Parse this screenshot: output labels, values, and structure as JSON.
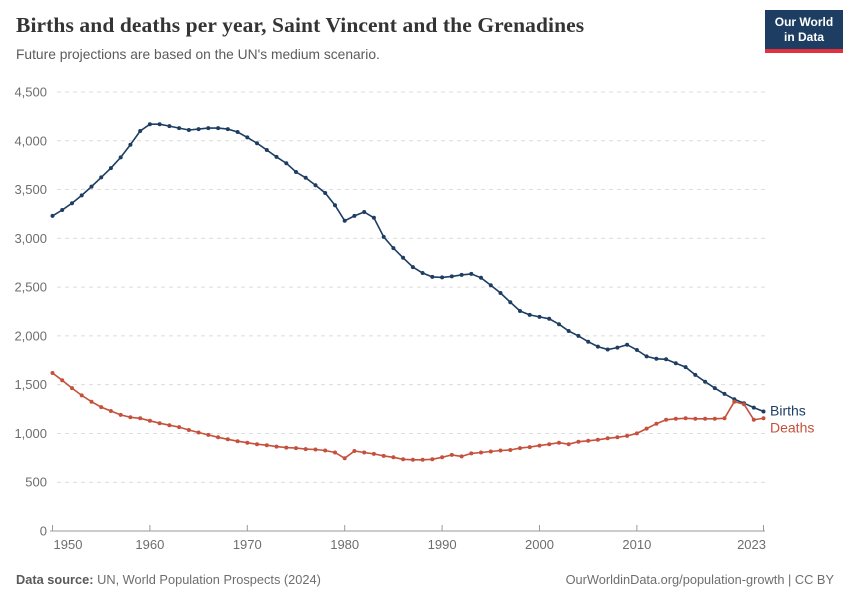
{
  "header": {
    "title": "Births and deaths per year, Saint Vincent and the Grenadines",
    "subtitle": "Future projections are based on the UN's medium scenario."
  },
  "logo": {
    "line1": "Our World",
    "line2": "in Data",
    "bg": "#1d3d63",
    "bar": "#e0313d"
  },
  "chart_data": {
    "type": "line",
    "title": "Births and deaths per year, Saint Vincent and the Grenadines",
    "xlabel": "",
    "ylabel": "",
    "ylim": [
      0,
      4500
    ],
    "y_ticks": [
      0,
      500,
      1000,
      1500,
      2000,
      2500,
      3000,
      3500,
      4000,
      4500
    ],
    "x_ticks": [
      1950,
      1960,
      1970,
      1980,
      1990,
      2000,
      2010,
      2023
    ],
    "grid": true,
    "legend_position": "end-of-line",
    "colors": {
      "grid": "#dcdcdc",
      "axis": "#9a9a9a",
      "tick_text": "#6e6e6e"
    },
    "x": [
      1950,
      1951,
      1952,
      1953,
      1954,
      1955,
      1956,
      1957,
      1958,
      1959,
      1960,
      1961,
      1962,
      1963,
      1964,
      1965,
      1966,
      1967,
      1968,
      1969,
      1970,
      1971,
      1972,
      1973,
      1974,
      1975,
      1976,
      1977,
      1978,
      1979,
      1980,
      1981,
      1982,
      1983,
      1984,
      1985,
      1986,
      1987,
      1988,
      1989,
      1990,
      1991,
      1992,
      1993,
      1994,
      1995,
      1996,
      1997,
      1998,
      1999,
      2000,
      2001,
      2002,
      2003,
      2004,
      2005,
      2006,
      2007,
      2008,
      2009,
      2010,
      2011,
      2012,
      2013,
      2014,
      2015,
      2016,
      2017,
      2018,
      2019,
      2020,
      2021,
      2022,
      2023
    ],
    "series": [
      {
        "name": "Births",
        "color": "#1d3d63",
        "values": [
          3230,
          3290,
          3360,
          3440,
          3530,
          3625,
          3720,
          3830,
          3960,
          4100,
          4170,
          4170,
          4150,
          4130,
          4110,
          4120,
          4130,
          4130,
          4120,
          4090,
          4035,
          3975,
          3905,
          3835,
          3770,
          3680,
          3620,
          3545,
          3465,
          3340,
          3180,
          3230,
          3270,
          3210,
          3015,
          2900,
          2800,
          2705,
          2645,
          2605,
          2600,
          2610,
          2625,
          2635,
          2595,
          2520,
          2440,
          2345,
          2255,
          2215,
          2195,
          2175,
          2120,
          2050,
          2000,
          1940,
          1890,
          1860,
          1880,
          1910,
          1855,
          1790,
          1765,
          1760,
          1720,
          1680,
          1600,
          1530,
          1465,
          1405,
          1350,
          1310,
          1265,
          1225
        ]
      },
      {
        "name": "Deaths",
        "color": "#c5513d",
        "values": [
          1620,
          1545,
          1465,
          1390,
          1325,
          1270,
          1230,
          1190,
          1165,
          1155,
          1130,
          1105,
          1085,
          1065,
          1035,
          1010,
          985,
          960,
          940,
          920,
          905,
          890,
          880,
          865,
          855,
          850,
          840,
          835,
          825,
          805,
          745,
          820,
          805,
          790,
          770,
          755,
          735,
          730,
          730,
          735,
          755,
          780,
          765,
          795,
          805,
          815,
          825,
          830,
          850,
          860,
          875,
          890,
          905,
          890,
          915,
          925,
          935,
          950,
          960,
          975,
          1000,
          1050,
          1100,
          1140,
          1150,
          1155,
          1150,
          1150,
          1150,
          1155,
          1325,
          1300,
          1140,
          1155
        ]
      }
    ]
  },
  "footer": {
    "source_label": "Data source:",
    "source_text": " UN, World Population Prospects (2024)",
    "credit": "OurWorldinData.org/population-growth | CC BY"
  }
}
